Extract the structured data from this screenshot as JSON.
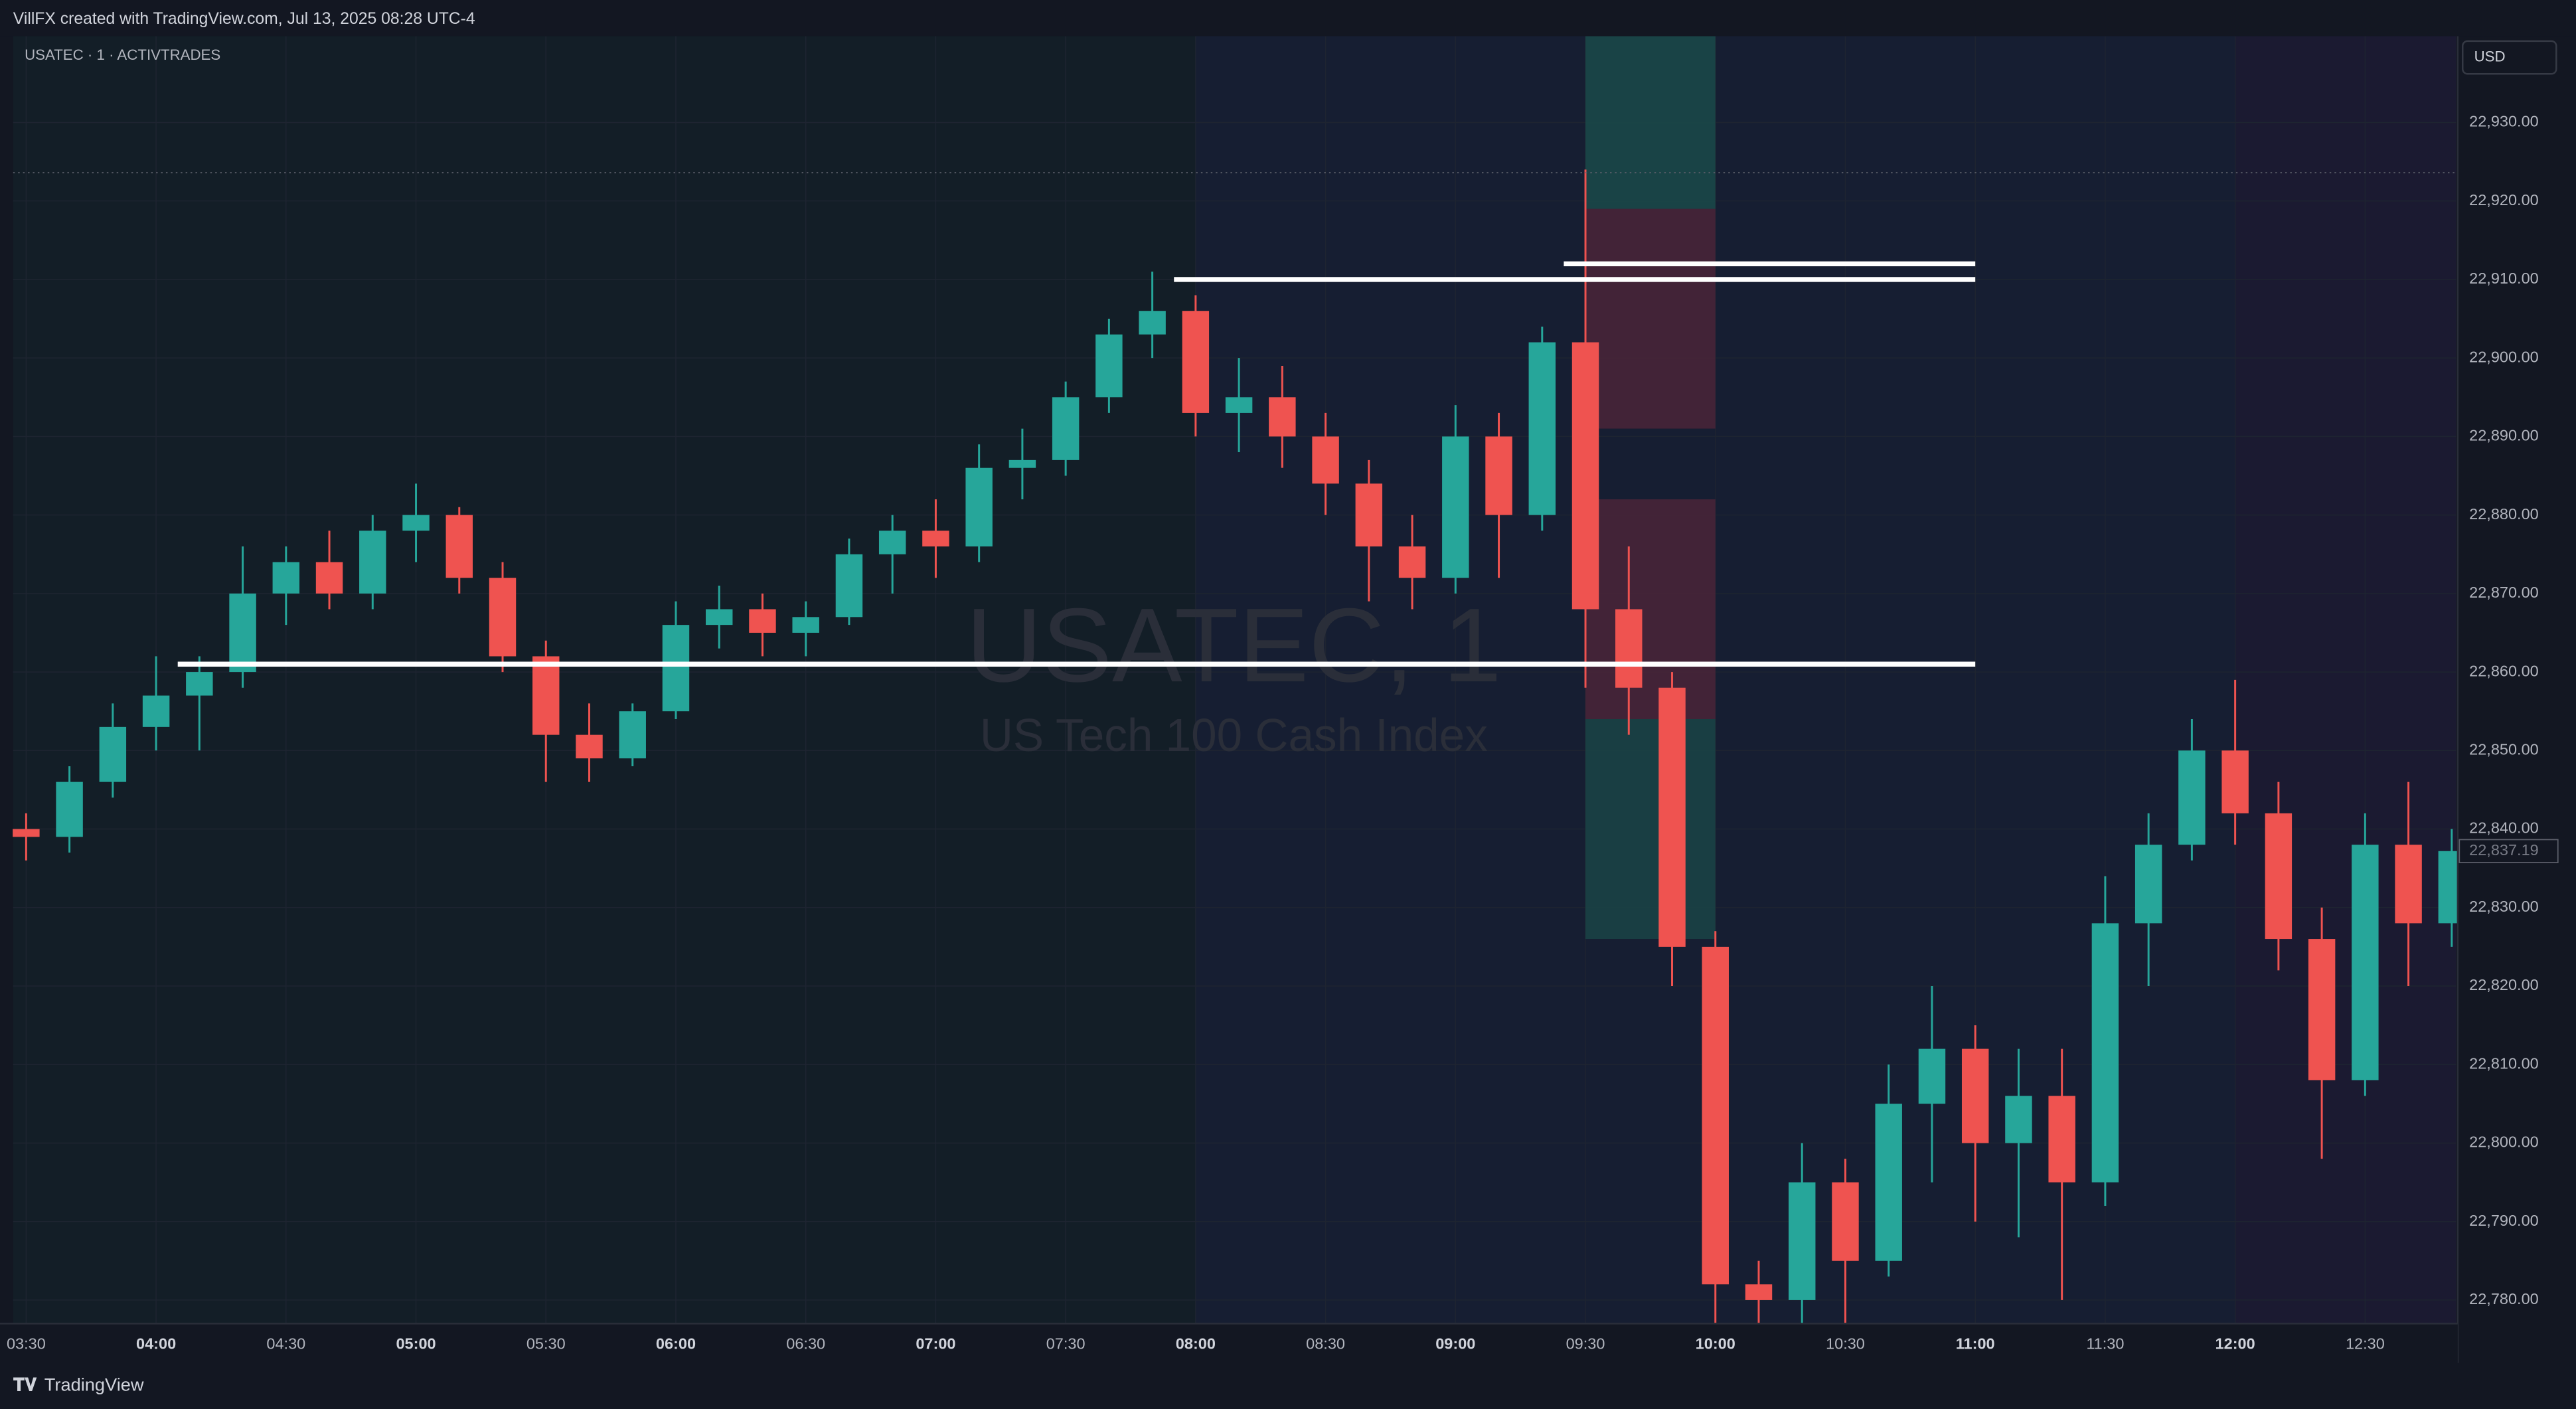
{
  "header": "VillFX created with TradingView.com, Jul 13, 2025 08:28 UTC-4",
  "footer": "TradingView",
  "chart_data": {
    "type": "candlestick",
    "symbol": "USATEC · 1 · ACTIVTRADES",
    "currency": "USD",
    "watermark": "USATEC, 1",
    "watermark_subtitle": "US Tech 100 Cash Index",
    "x": [
      "03:30",
      "03:40",
      "03:50",
      "04:00",
      "04:10",
      "04:20",
      "04:30",
      "04:40",
      "04:50",
      "05:00",
      "05:10",
      "05:20",
      "05:30",
      "05:40",
      "05:50",
      "06:00",
      "06:10",
      "06:20",
      "06:30",
      "06:40",
      "06:50",
      "07:00",
      "07:10",
      "07:20",
      "07:30",
      "07:40",
      "07:50",
      "08:00",
      "08:10",
      "08:20",
      "08:30",
      "08:40",
      "08:50",
      "09:00",
      "09:10",
      "09:20",
      "09:30",
      "09:40",
      "09:50",
      "10:00",
      "10:10",
      "10:20",
      "10:30",
      "10:40",
      "10:50",
      "11:00",
      "11:10",
      "11:20",
      "11:30",
      "11:40",
      "11:50",
      "12:00",
      "12:10",
      "12:20",
      "12:30",
      "12:40",
      "12:50"
    ],
    "open": [
      22840,
      22839,
      22846,
      22853,
      22857,
      22860,
      22870,
      22874,
      22870,
      22878,
      22880,
      22872,
      22862,
      22852,
      22849,
      22855,
      22866,
      22868,
      22865,
      22867,
      22875,
      22878,
      22876,
      22886,
      22887,
      22895,
      22903,
      22906,
      22893,
      22895,
      22890,
      22884,
      22876,
      22872,
      22890,
      22880,
      22902,
      22868,
      22858,
      22825,
      22782,
      22780,
      22795,
      22785,
      22805,
      22812,
      22800,
      22806,
      22795,
      22828,
      22838,
      22850,
      22842,
      22826,
      22808,
      22838,
      22828
    ],
    "high": [
      22842,
      22848,
      22856,
      22862,
      22862,
      22876,
      22876,
      22878,
      22880,
      22884,
      22881,
      22874,
      22864,
      22856,
      22856,
      22869,
      22871,
      22870,
      22869,
      22877,
      22880,
      22882,
      22889,
      22891,
      22897,
      22905,
      22911,
      22908,
      22900,
      22899,
      22893,
      22887,
      22880,
      22894,
      22893,
      22904,
      22924,
      22876,
      22860,
      22827,
      22785,
      22800,
      22798,
      22810,
      22820,
      22815,
      22812,
      22812,
      22834,
      22842,
      22854,
      22859,
      22846,
      22830,
      22842,
      22846,
      22840
    ],
    "low": [
      22836,
      22837,
      22844,
      22850,
      22850,
      22858,
      22866,
      22868,
      22868,
      22874,
      22870,
      22860,
      22846,
      22846,
      22848,
      22854,
      22863,
      22862,
      22862,
      22866,
      22870,
      22872,
      22874,
      22882,
      22885,
      22893,
      22900,
      22890,
      22888,
      22886,
      22880,
      22869,
      22868,
      22870,
      22872,
      22878,
      22858,
      22852,
      22820,
      22777,
      22777,
      22777,
      22777,
      22783,
      22795,
      22790,
      22788,
      22780,
      22792,
      22820,
      22836,
      22838,
      22822,
      22798,
      22806,
      22820,
      22825
    ],
    "close": [
      22839,
      22846,
      22853,
      22857,
      22860,
      22870,
      22874,
      22870,
      22878,
      22880,
      22872,
      22862,
      22852,
      22849,
      22855,
      22866,
      22868,
      22865,
      22867,
      22875,
      22878,
      22876,
      22886,
      22887,
      22895,
      22903,
      22906,
      22893,
      22895,
      22890,
      22884,
      22876,
      22872,
      22890,
      22880,
      22902,
      22868,
      22858,
      22825,
      22782,
      22780,
      22795,
      22785,
      22805,
      22812,
      22800,
      22806,
      22795,
      22828,
      22838,
      22850,
      22842,
      22826,
      22808,
      22838,
      22828,
      22837.19
    ],
    "up_color": "#26a69a",
    "down_color": "#ef5350",
    "xlim": [
      "03:27",
      "12:51"
    ],
    "xticks": [
      "03:30",
      "04:00",
      "04:30",
      "05:00",
      "05:30",
      "06:00",
      "06:30",
      "07:00",
      "07:30",
      "08:00",
      "08:30",
      "09:00",
      "09:30",
      "10:00",
      "10:30",
      "11:00",
      "11:30",
      "12:00",
      "12:30"
    ],
    "ylim": [
      22777,
      22941
    ],
    "yticks": [
      {
        "value": 22780,
        "label": "22,780.00"
      },
      {
        "value": 22790,
        "label": "22,790.00"
      },
      {
        "value": 22800,
        "label": "22,800.00"
      },
      {
        "value": 22810,
        "label": "22,810.00"
      },
      {
        "value": 22820,
        "label": "22,820.00"
      },
      {
        "value": 22830,
        "label": "22,830.00"
      },
      {
        "value": 22840,
        "label": "22,840.00"
      },
      {
        "value": 22850,
        "label": "22,850.00"
      },
      {
        "value": 22860,
        "label": "22,860.00"
      },
      {
        "value": 22870,
        "label": "22,870.00"
      },
      {
        "value": 22880,
        "label": "22,880.00"
      },
      {
        "value": 22890,
        "label": "22,890.00"
      },
      {
        "value": 22900,
        "label": "22,900.00"
      },
      {
        "value": 22910,
        "label": "22,910.00"
      },
      {
        "value": 22920,
        "label": "22,920.00"
      },
      {
        "value": 22930,
        "label": "22,930.00"
      }
    ],
    "grid": true,
    "last_price": {
      "value": 22837.19,
      "label": "22,837.19"
    },
    "high_line": 22923.6,
    "sessions": [
      {
        "from": "03:27",
        "to": "08:00",
        "color": "#131e27"
      },
      {
        "from": "08:00",
        "to": "12:00",
        "color": "#161e32"
      },
      {
        "from": "12:00",
        "to": "12:51",
        "color": "#1b1a31"
      }
    ],
    "levels": [
      {
        "price": 22861,
        "from": "04:05",
        "to": "11:00"
      },
      {
        "price": 22910,
        "from": "07:55",
        "to": "11:00"
      },
      {
        "price": 22912,
        "from": "09:25",
        "to": "11:00"
      }
    ],
    "zones": [
      {
        "from": "09:30",
        "to": "10:00",
        "top": 22941,
        "bottom": 22919,
        "color": "#1a4a4a"
      },
      {
        "from": "09:30",
        "to": "10:00",
        "top": 22919,
        "bottom": 22891,
        "color": "#4a2538"
      },
      {
        "from": "09:30",
        "to": "10:00",
        "top": 22882,
        "bottom": 22854,
        "color": "#4a2538"
      },
      {
        "from": "09:30",
        "to": "10:00",
        "top": 22854,
        "bottom": 22826,
        "color": "#1a4447"
      }
    ]
  }
}
